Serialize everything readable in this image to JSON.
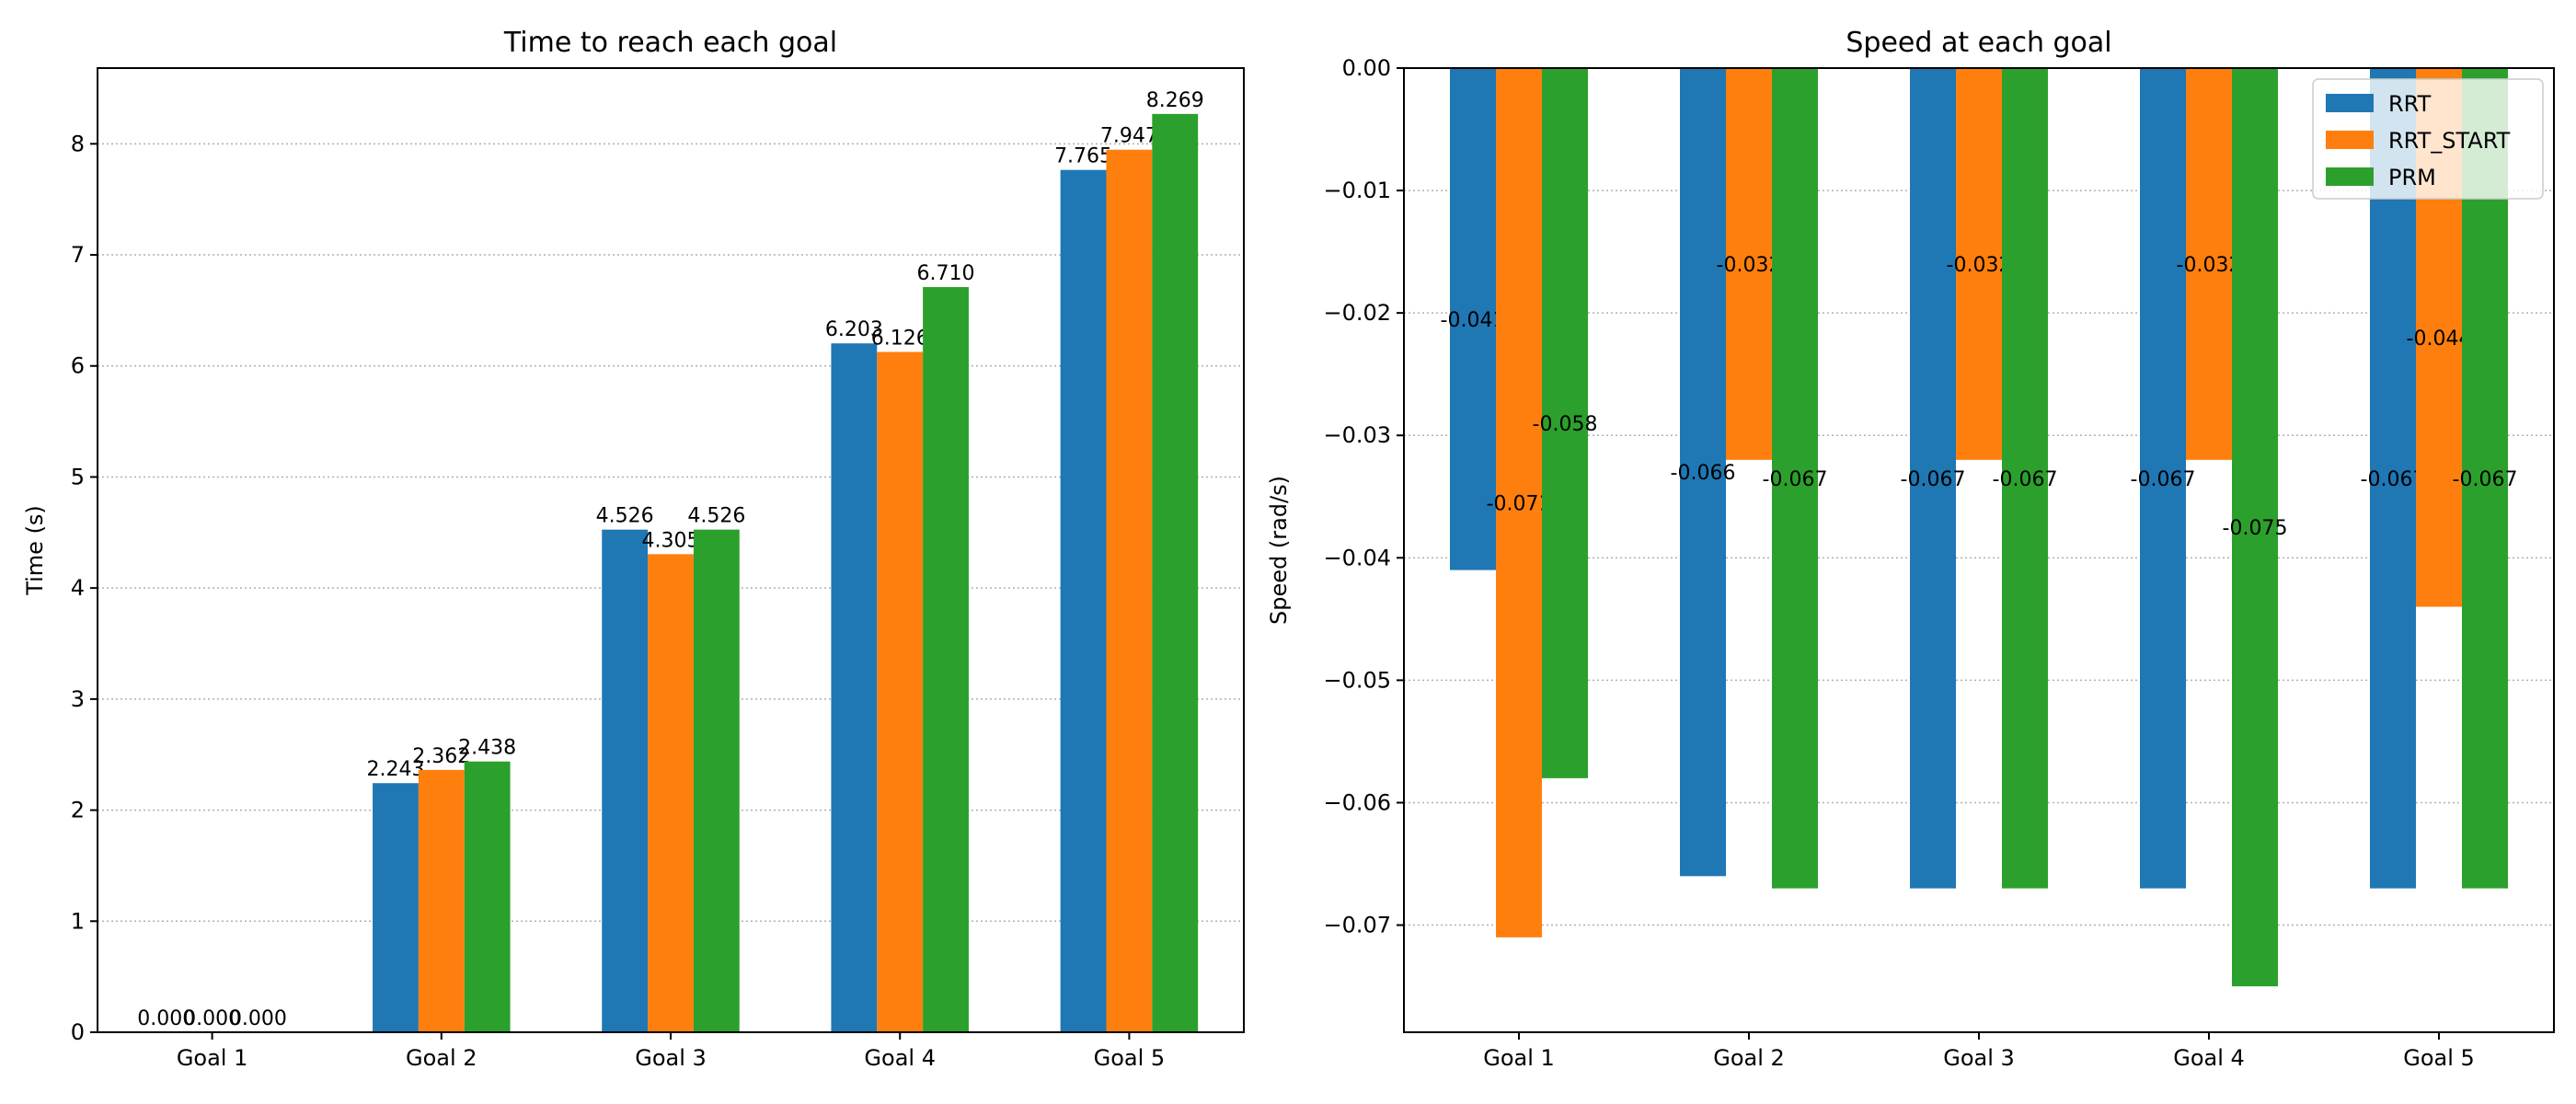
{
  "chart_data": [
    {
      "type": "bar",
      "title": "Time to reach each goal",
      "xlabel": "",
      "ylabel": "Time (s)",
      "categories": [
        "Goal 1",
        "Goal 2",
        "Goal 3",
        "Goal 4",
        "Goal 5"
      ],
      "ylim": [
        0,
        8.682
      ],
      "yticks": [
        0,
        1,
        2,
        3,
        4,
        5,
        6,
        7,
        8
      ],
      "ytick_decimals": 0,
      "label_decimals": 3,
      "grid": true,
      "legend": null,
      "series": [
        {
          "name": "RRT",
          "color": "#1f77b4",
          "values": [
            0.0,
            2.243,
            4.526,
            6.203,
            7.765
          ]
        },
        {
          "name": "RRT_START",
          "color": "#ff7f0e",
          "values": [
            0.0,
            2.362,
            4.305,
            6.126,
            7.947
          ]
        },
        {
          "name": "PRM",
          "color": "#2ca02c",
          "values": [
            0.0,
            2.438,
            4.526,
            6.71,
            8.269
          ]
        }
      ]
    },
    {
      "type": "bar",
      "title": "Speed at each goal",
      "xlabel": "",
      "ylabel": "Speed (rad/s)",
      "categories": [
        "Goal 1",
        "Goal 2",
        "Goal 3",
        "Goal 4",
        "Goal 5"
      ],
      "ylim": [
        -0.07875,
        0
      ],
      "yticks": [
        0,
        -0.01,
        -0.02,
        -0.03,
        -0.04,
        -0.05,
        -0.06,
        -0.07
      ],
      "ytick_decimals": 2,
      "label_decimals": 3,
      "grid": true,
      "legend": "upper right",
      "series": [
        {
          "name": "RRT",
          "color": "#1f77b4",
          "values": [
            -0.041,
            -0.066,
            -0.067,
            -0.067,
            -0.067
          ]
        },
        {
          "name": "RRT_START",
          "color": "#ff7f0e",
          "values": [
            -0.071,
            -0.032,
            -0.032,
            -0.032,
            -0.044
          ]
        },
        {
          "name": "PRM",
          "color": "#2ca02c",
          "values": [
            -0.058,
            -0.067,
            -0.067,
            -0.075,
            -0.067
          ]
        }
      ]
    }
  ]
}
